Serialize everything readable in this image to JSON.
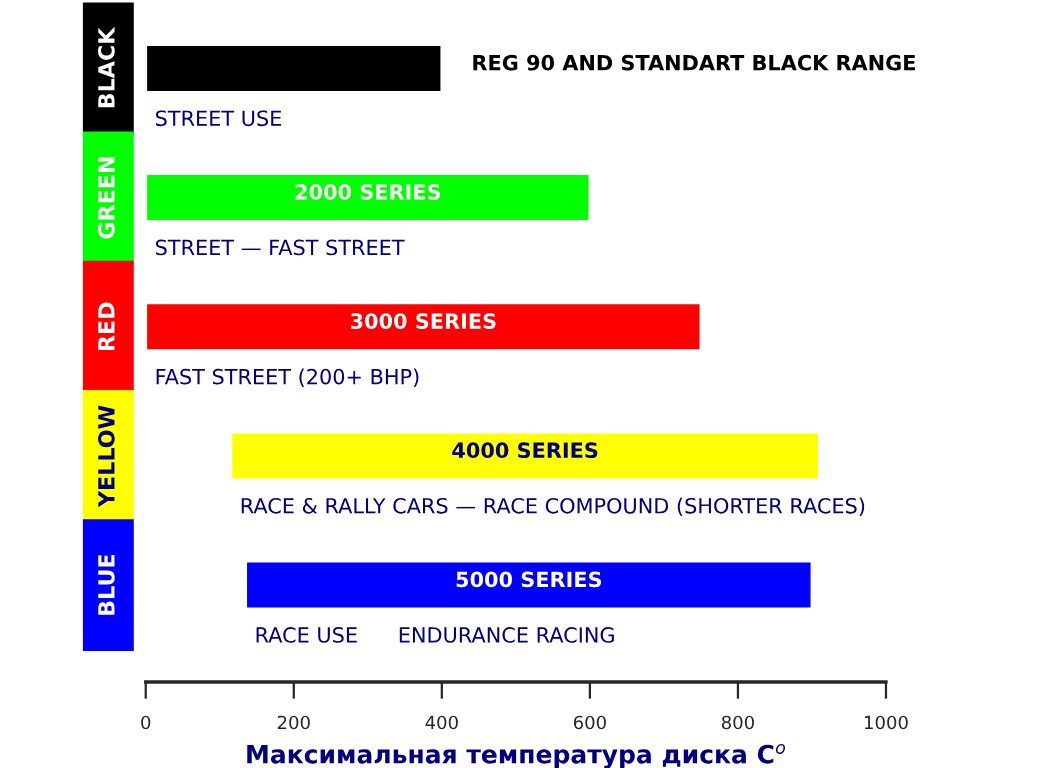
{
  "chart_data": {
    "type": "bar",
    "orientation": "horizontal",
    "xlabel": "Максимальная температура диска C$^{o}$",
    "categories": [
      "BLACK",
      "GREEN",
      "RED",
      "YELLOW",
      "BLUE"
    ],
    "base": [
      0,
      0,
      0,
      115,
      135
    ],
    "values": [
      400,
      600,
      750,
      795,
      765
    ],
    "colors": [
      "#000000",
      "#00ff00",
      "#ff0000",
      "#ffff00",
      "#0000ff"
    ],
    "xlim": [
      0,
      1000
    ],
    "xticks": [
      0,
      200,
      400,
      600,
      800,
      1000
    ],
    "grid": false,
    "annotations": [
      "REG 90 AND STANDART BLACK RANGE",
      "2000 SERIES",
      "3000 SERIES",
      "4000 SERIES",
      "5000 SERIES",
      "STREET USE",
      "STREET — FAST STREET",
      "FAST STREET (200+ BHP)",
      "RACE & RALLY CARS — RACE COMPOUND (SHORTER RACES)",
      "RACE USE      ENDURANCE RACING"
    ]
  }
}
